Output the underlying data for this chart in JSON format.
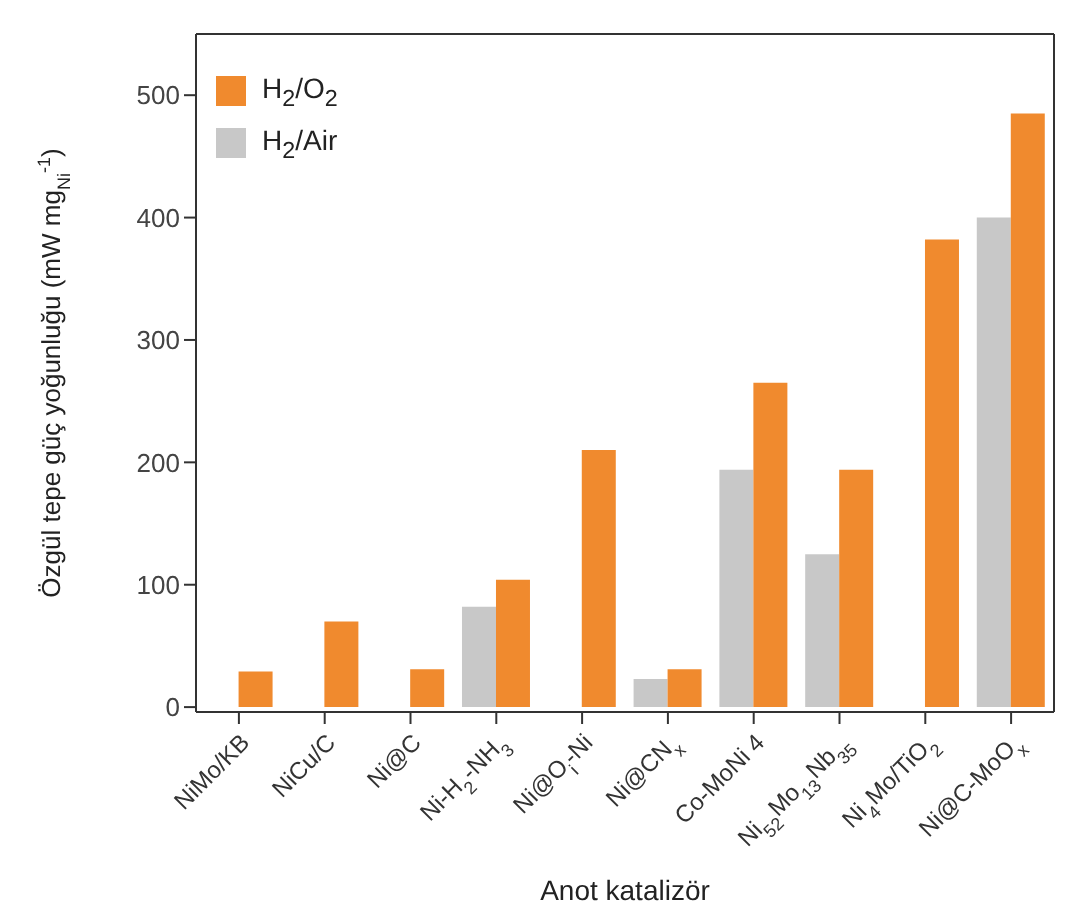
{
  "chart_data": {
    "type": "bar",
    "xlabel": "Anot katalizör",
    "ylabel": "Özgül tepe güç yoğunluğu (mW mg$_{Ni}$$^{-1}$)",
    "categories": [
      "NiMo/KB",
      "NiCu/C",
      "Ni@C",
      "Ni-H$_{2}$-NH$_{3}$",
      "Ni@O$_{i}$-Ni",
      "Ni@CN$_{x}$",
      "Co-MoNi 4",
      "Ni$_{52}$Mo$_{13}$Nb$_{35}$",
      "Ni$_{4}$Mo/TiO$_{2}$",
      "Ni@C-MoO$_{x}$"
    ],
    "series": [
      {
        "name": "H$_{2}$/O$_{2}$",
        "color": "#f08a2e",
        "values": [
          29,
          70,
          31,
          104,
          210,
          31,
          265,
          194,
          382,
          485
        ]
      },
      {
        "name": "H$_{2}$/Air",
        "color": "#c8c8c8",
        "values": [
          null,
          null,
          null,
          82,
          null,
          23,
          194,
          125,
          null,
          400
        ]
      }
    ],
    "ylim": [
      -4,
      550
    ],
    "yticks": [
      0,
      100,
      200,
      300,
      400,
      500
    ],
    "legend": "top left",
    "grid": false
  }
}
